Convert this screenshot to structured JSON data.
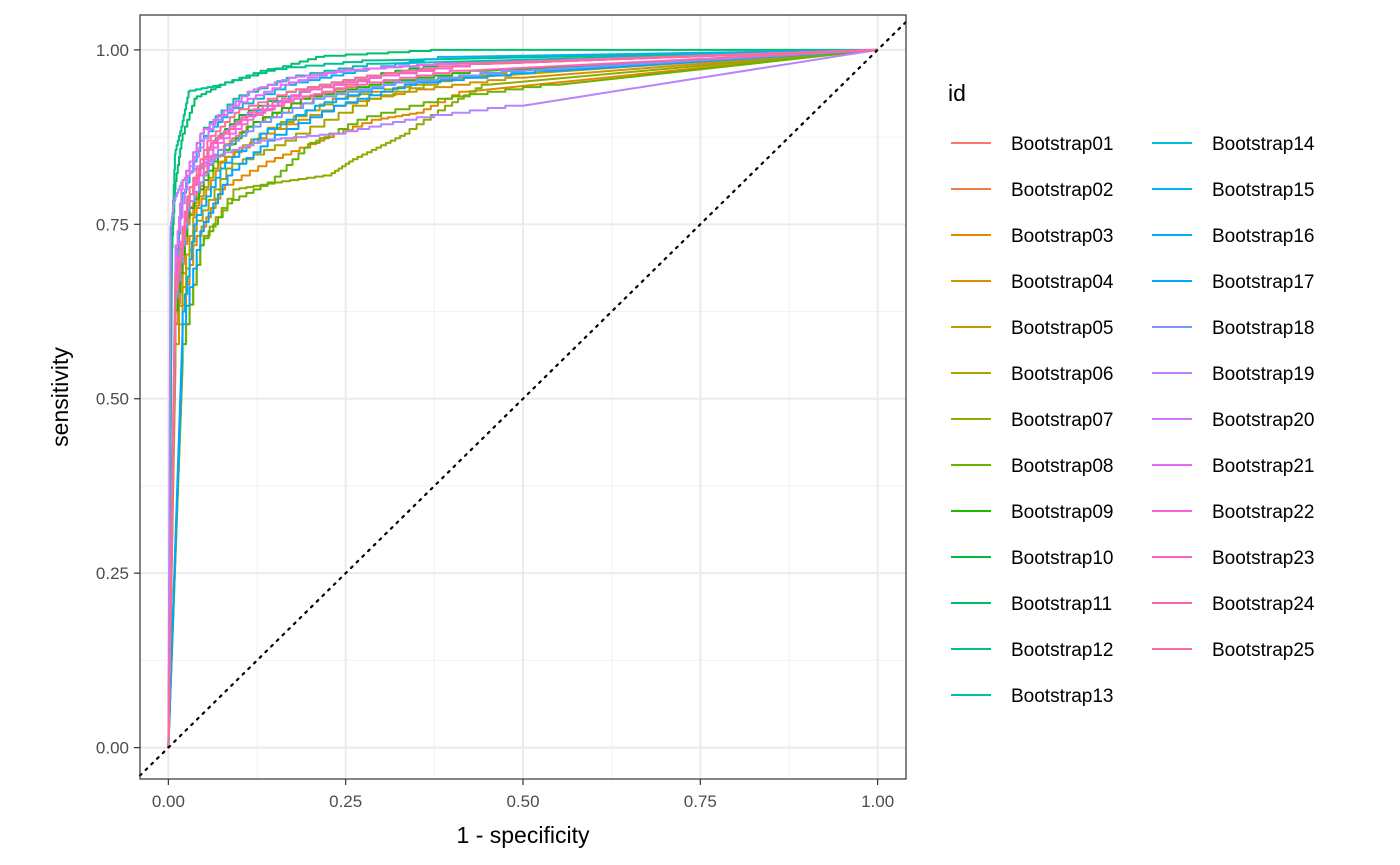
{
  "chart_data": {
    "type": "line",
    "title": "",
    "xlabel": "1 - specificity",
    "ylabel": "sensitivity",
    "xlim": [
      -0.04,
      1.04
    ],
    "ylim": [
      -0.045,
      1.05
    ],
    "x_ticks": [
      0,
      0.25,
      0.5,
      0.75,
      1
    ],
    "x_tick_labels": [
      "0.00",
      "0.25",
      "0.50",
      "0.75",
      "1.00"
    ],
    "y_ticks": [
      0,
      0.25,
      0.5,
      0.75,
      1
    ],
    "y_tick_labels": [
      "0.00",
      "0.25",
      "0.50",
      "0.75",
      "1.00"
    ],
    "grid": true,
    "reference_line": {
      "x": [
        0,
        1
      ],
      "y": [
        0,
        1
      ],
      "style": "dotted"
    },
    "legend": {
      "title": "id",
      "placement": "right",
      "columns": 2
    },
    "series": [
      {
        "name": "Bootstrap01",
        "color": "#F8766D",
        "points": [
          [
            0,
            0
          ],
          [
            0.01,
            0.62
          ],
          [
            0.03,
            0.76
          ],
          [
            0.07,
            0.85
          ],
          [
            0.12,
            0.89
          ],
          [
            0.2,
            0.93
          ],
          [
            0.3,
            0.96
          ],
          [
            0.45,
            0.98
          ],
          [
            1,
            1
          ]
        ]
      },
      {
        "name": "Bootstrap02",
        "color": "#EF7F49",
        "points": [
          [
            0,
            0
          ],
          [
            0.01,
            0.58
          ],
          [
            0.03,
            0.75
          ],
          [
            0.06,
            0.84
          ],
          [
            0.12,
            0.89
          ],
          [
            0.22,
            0.93
          ],
          [
            0.32,
            0.95
          ],
          [
            0.5,
            0.97
          ],
          [
            1,
            1
          ]
        ]
      },
      {
        "name": "Bootstrap03",
        "color": "#E38900",
        "points": [
          [
            0,
            0
          ],
          [
            0.01,
            0.55
          ],
          [
            0.04,
            0.72
          ],
          [
            0.08,
            0.8
          ],
          [
            0.15,
            0.84
          ],
          [
            0.22,
            0.87
          ],
          [
            0.3,
            0.9
          ],
          [
            0.36,
            0.91
          ],
          [
            0.42,
            0.94
          ],
          [
            1,
            1
          ]
        ]
      },
      {
        "name": "Bootstrap04",
        "color": "#D39200",
        "points": [
          [
            0,
            0
          ],
          [
            0.01,
            0.6
          ],
          [
            0.04,
            0.76
          ],
          [
            0.08,
            0.84
          ],
          [
            0.15,
            0.88
          ],
          [
            0.25,
            0.92
          ],
          [
            0.35,
            0.94
          ],
          [
            0.5,
            0.96
          ],
          [
            1,
            1
          ]
        ]
      },
      {
        "name": "Bootstrap05",
        "color": "#C09B00",
        "points": [
          [
            0,
            0
          ],
          [
            0.01,
            0.6
          ],
          [
            0.03,
            0.75
          ],
          [
            0.07,
            0.83
          ],
          [
            0.14,
            0.88
          ],
          [
            0.25,
            0.93
          ],
          [
            0.36,
            0.95
          ],
          [
            0.5,
            0.97
          ],
          [
            1,
            1
          ]
        ]
      },
      {
        "name": "Bootstrap06",
        "color": "#A9A400",
        "points": [
          [
            0,
            0
          ],
          [
            0.01,
            0.58
          ],
          [
            0.04,
            0.74
          ],
          [
            0.09,
            0.83
          ],
          [
            0.18,
            0.87
          ],
          [
            0.3,
            0.93
          ],
          [
            0.42,
            0.96
          ],
          [
            1,
            1
          ]
        ]
      },
      {
        "name": "Bootstrap07",
        "color": "#8FAA00",
        "points": [
          [
            0,
            0
          ],
          [
            0.02,
            0.55
          ],
          [
            0.05,
            0.72
          ],
          [
            0.1,
            0.8
          ],
          [
            0.16,
            0.81
          ],
          [
            0.23,
            0.82
          ],
          [
            0.26,
            0.84
          ],
          [
            0.3,
            0.86
          ],
          [
            0.34,
            0.88
          ],
          [
            0.4,
            0.92
          ],
          [
            0.45,
            0.95
          ],
          [
            1,
            1
          ]
        ]
      },
      {
        "name": "Bootstrap08",
        "color": "#6BB100",
        "points": [
          [
            0,
            0
          ],
          [
            0.02,
            0.55
          ],
          [
            0.05,
            0.72
          ],
          [
            0.09,
            0.78
          ],
          [
            0.15,
            0.81
          ],
          [
            0.2,
            0.86
          ],
          [
            0.28,
            0.9
          ],
          [
            0.4,
            0.93
          ],
          [
            0.55,
            0.95
          ],
          [
            1,
            1
          ]
        ]
      },
      {
        "name": "Bootstrap09",
        "color": "#24B700",
        "points": [
          [
            0,
            0
          ],
          [
            0.01,
            0.6
          ],
          [
            0.03,
            0.76
          ],
          [
            0.07,
            0.84
          ],
          [
            0.12,
            0.89
          ],
          [
            0.2,
            0.93
          ],
          [
            0.3,
            0.95
          ],
          [
            0.45,
            0.97
          ],
          [
            1,
            1
          ]
        ]
      },
      {
        "name": "Bootstrap10",
        "color": "#00BA38",
        "points": [
          [
            0,
            0
          ],
          [
            0.01,
            0.65
          ],
          [
            0.03,
            0.78
          ],
          [
            0.06,
            0.86
          ],
          [
            0.1,
            0.9
          ],
          [
            0.18,
            0.94
          ],
          [
            0.28,
            0.96
          ],
          [
            0.4,
            0.98
          ],
          [
            1,
            1
          ]
        ]
      },
      {
        "name": "Bootstrap11",
        "color": "#00BE6C",
        "points": [
          [
            0,
            0
          ],
          [
            0.005,
            0.7
          ],
          [
            0.01,
            0.8
          ],
          [
            0.02,
            0.87
          ],
          [
            0.04,
            0.93
          ],
          [
            0.08,
            0.95
          ],
          [
            0.15,
            0.97
          ],
          [
            0.22,
            0.99
          ],
          [
            0.4,
            1
          ],
          [
            1,
            1
          ]
        ]
      },
      {
        "name": "Bootstrap12",
        "color": "#00C08D",
        "points": [
          [
            0,
            0
          ],
          [
            0.005,
            0.72
          ],
          [
            0.01,
            0.85
          ],
          [
            0.02,
            0.89
          ],
          [
            0.03,
            0.94
          ],
          [
            0.08,
            0.95
          ],
          [
            0.14,
            0.97
          ],
          [
            0.3,
            0.985
          ],
          [
            1,
            1
          ]
        ]
      },
      {
        "name": "Bootstrap13",
        "color": "#00C0AB",
        "points": [
          [
            0,
            0
          ],
          [
            0.01,
            0.68
          ],
          [
            0.02,
            0.8
          ],
          [
            0.05,
            0.88
          ],
          [
            0.1,
            0.93
          ],
          [
            0.18,
            0.96
          ],
          [
            0.3,
            0.98
          ],
          [
            1,
            1
          ]
        ]
      },
      {
        "name": "Bootstrap14",
        "color": "#00BCD8",
        "points": [
          [
            0,
            0
          ],
          [
            0.01,
            0.65
          ],
          [
            0.03,
            0.78
          ],
          [
            0.06,
            0.86
          ],
          [
            0.11,
            0.9
          ],
          [
            0.2,
            0.94
          ],
          [
            0.3,
            0.96
          ],
          [
            0.45,
            0.98
          ],
          [
            1,
            1
          ]
        ]
      },
      {
        "name": "Bootstrap15",
        "color": "#00B5EE",
        "points": [
          [
            0,
            0
          ],
          [
            0.01,
            0.65
          ],
          [
            0.02,
            0.78
          ],
          [
            0.05,
            0.87
          ],
          [
            0.09,
            0.91
          ],
          [
            0.18,
            0.95
          ],
          [
            0.28,
            0.97
          ],
          [
            0.4,
            0.99
          ],
          [
            1,
            1
          ]
        ]
      },
      {
        "name": "Bootstrap16",
        "color": "#00ACFC",
        "points": [
          [
            0,
            0
          ],
          [
            0.02,
            0.6
          ],
          [
            0.04,
            0.75
          ],
          [
            0.08,
            0.83
          ],
          [
            0.14,
            0.88
          ],
          [
            0.22,
            0.92
          ],
          [
            0.32,
            0.95
          ],
          [
            0.5,
            0.97
          ],
          [
            1,
            1
          ]
        ]
      },
      {
        "name": "Bootstrap17",
        "color": "#00A5FF",
        "points": [
          [
            0,
            0
          ],
          [
            0.02,
            0.58
          ],
          [
            0.05,
            0.74
          ],
          [
            0.09,
            0.82
          ],
          [
            0.15,
            0.87
          ],
          [
            0.25,
            0.92
          ],
          [
            0.35,
            0.95
          ],
          [
            0.55,
            0.97
          ],
          [
            1,
            1
          ]
        ]
      },
      {
        "name": "Bootstrap18",
        "color": "#7997FF",
        "points": [
          [
            0,
            0
          ],
          [
            0.01,
            0.62
          ],
          [
            0.03,
            0.77
          ],
          [
            0.07,
            0.85
          ],
          [
            0.13,
            0.89
          ],
          [
            0.22,
            0.93
          ],
          [
            0.32,
            0.95
          ],
          [
            0.5,
            0.97
          ],
          [
            1,
            1
          ]
        ]
      },
      {
        "name": "Bootstrap19",
        "color": "#B983FF",
        "points": [
          [
            0,
            0
          ],
          [
            0.003,
            0.74
          ],
          [
            0.008,
            0.78
          ],
          [
            0.02,
            0.81
          ],
          [
            0.04,
            0.83
          ],
          [
            0.08,
            0.85
          ],
          [
            0.14,
            0.87
          ],
          [
            0.25,
            0.88
          ],
          [
            0.35,
            0.9
          ],
          [
            0.5,
            0.92
          ],
          [
            1,
            1
          ]
        ]
      },
      {
        "name": "Bootstrap20",
        "color": "#D376FF",
        "points": [
          [
            0,
            0
          ],
          [
            0.01,
            0.7
          ],
          [
            0.03,
            0.82
          ],
          [
            0.07,
            0.9
          ],
          [
            0.12,
            0.94
          ],
          [
            0.18,
            0.96
          ],
          [
            0.26,
            0.97
          ],
          [
            0.4,
            0.98
          ],
          [
            1,
            1
          ]
        ]
      },
      {
        "name": "Bootstrap21",
        "color": "#E76BF3",
        "points": [
          [
            0,
            0
          ],
          [
            0.01,
            0.68
          ],
          [
            0.02,
            0.8
          ],
          [
            0.05,
            0.88
          ],
          [
            0.1,
            0.92
          ],
          [
            0.17,
            0.95
          ],
          [
            0.25,
            0.97
          ],
          [
            0.4,
            0.98
          ],
          [
            1,
            1
          ]
        ]
      },
      {
        "name": "Bootstrap22",
        "color": "#F564E3",
        "points": [
          [
            0,
            0
          ],
          [
            0.01,
            0.64
          ],
          [
            0.03,
            0.78
          ],
          [
            0.07,
            0.86
          ],
          [
            0.12,
            0.9
          ],
          [
            0.2,
            0.94
          ],
          [
            0.3,
            0.96
          ],
          [
            0.45,
            0.98
          ],
          [
            1,
            1
          ]
        ]
      },
      {
        "name": "Bootstrap23",
        "color": "#FD61D1",
        "points": [
          [
            0,
            0
          ],
          [
            0.01,
            0.66
          ],
          [
            0.03,
            0.79
          ],
          [
            0.07,
            0.87
          ],
          [
            0.12,
            0.91
          ],
          [
            0.2,
            0.94
          ],
          [
            0.3,
            0.96
          ],
          [
            0.45,
            0.98
          ],
          [
            1,
            1
          ]
        ]
      },
      {
        "name": "Bootstrap24",
        "color": "#FF64B0",
        "points": [
          [
            0,
            0
          ],
          [
            0.01,
            0.63
          ],
          [
            0.03,
            0.78
          ],
          [
            0.06,
            0.86
          ],
          [
            0.11,
            0.9
          ],
          [
            0.19,
            0.93
          ],
          [
            0.28,
            0.95
          ],
          [
            0.42,
            0.97
          ],
          [
            1,
            1
          ]
        ]
      },
      {
        "name": "Bootstrap25",
        "color": "#FF6C91",
        "points": [
          [
            0,
            0
          ],
          [
            0.01,
            0.65
          ],
          [
            0.03,
            0.79
          ],
          [
            0.06,
            0.87
          ],
          [
            0.1,
            0.91
          ],
          [
            0.18,
            0.94
          ],
          [
            0.28,
            0.96
          ],
          [
            0.43,
            0.98
          ],
          [
            1,
            1
          ]
        ]
      }
    ]
  }
}
